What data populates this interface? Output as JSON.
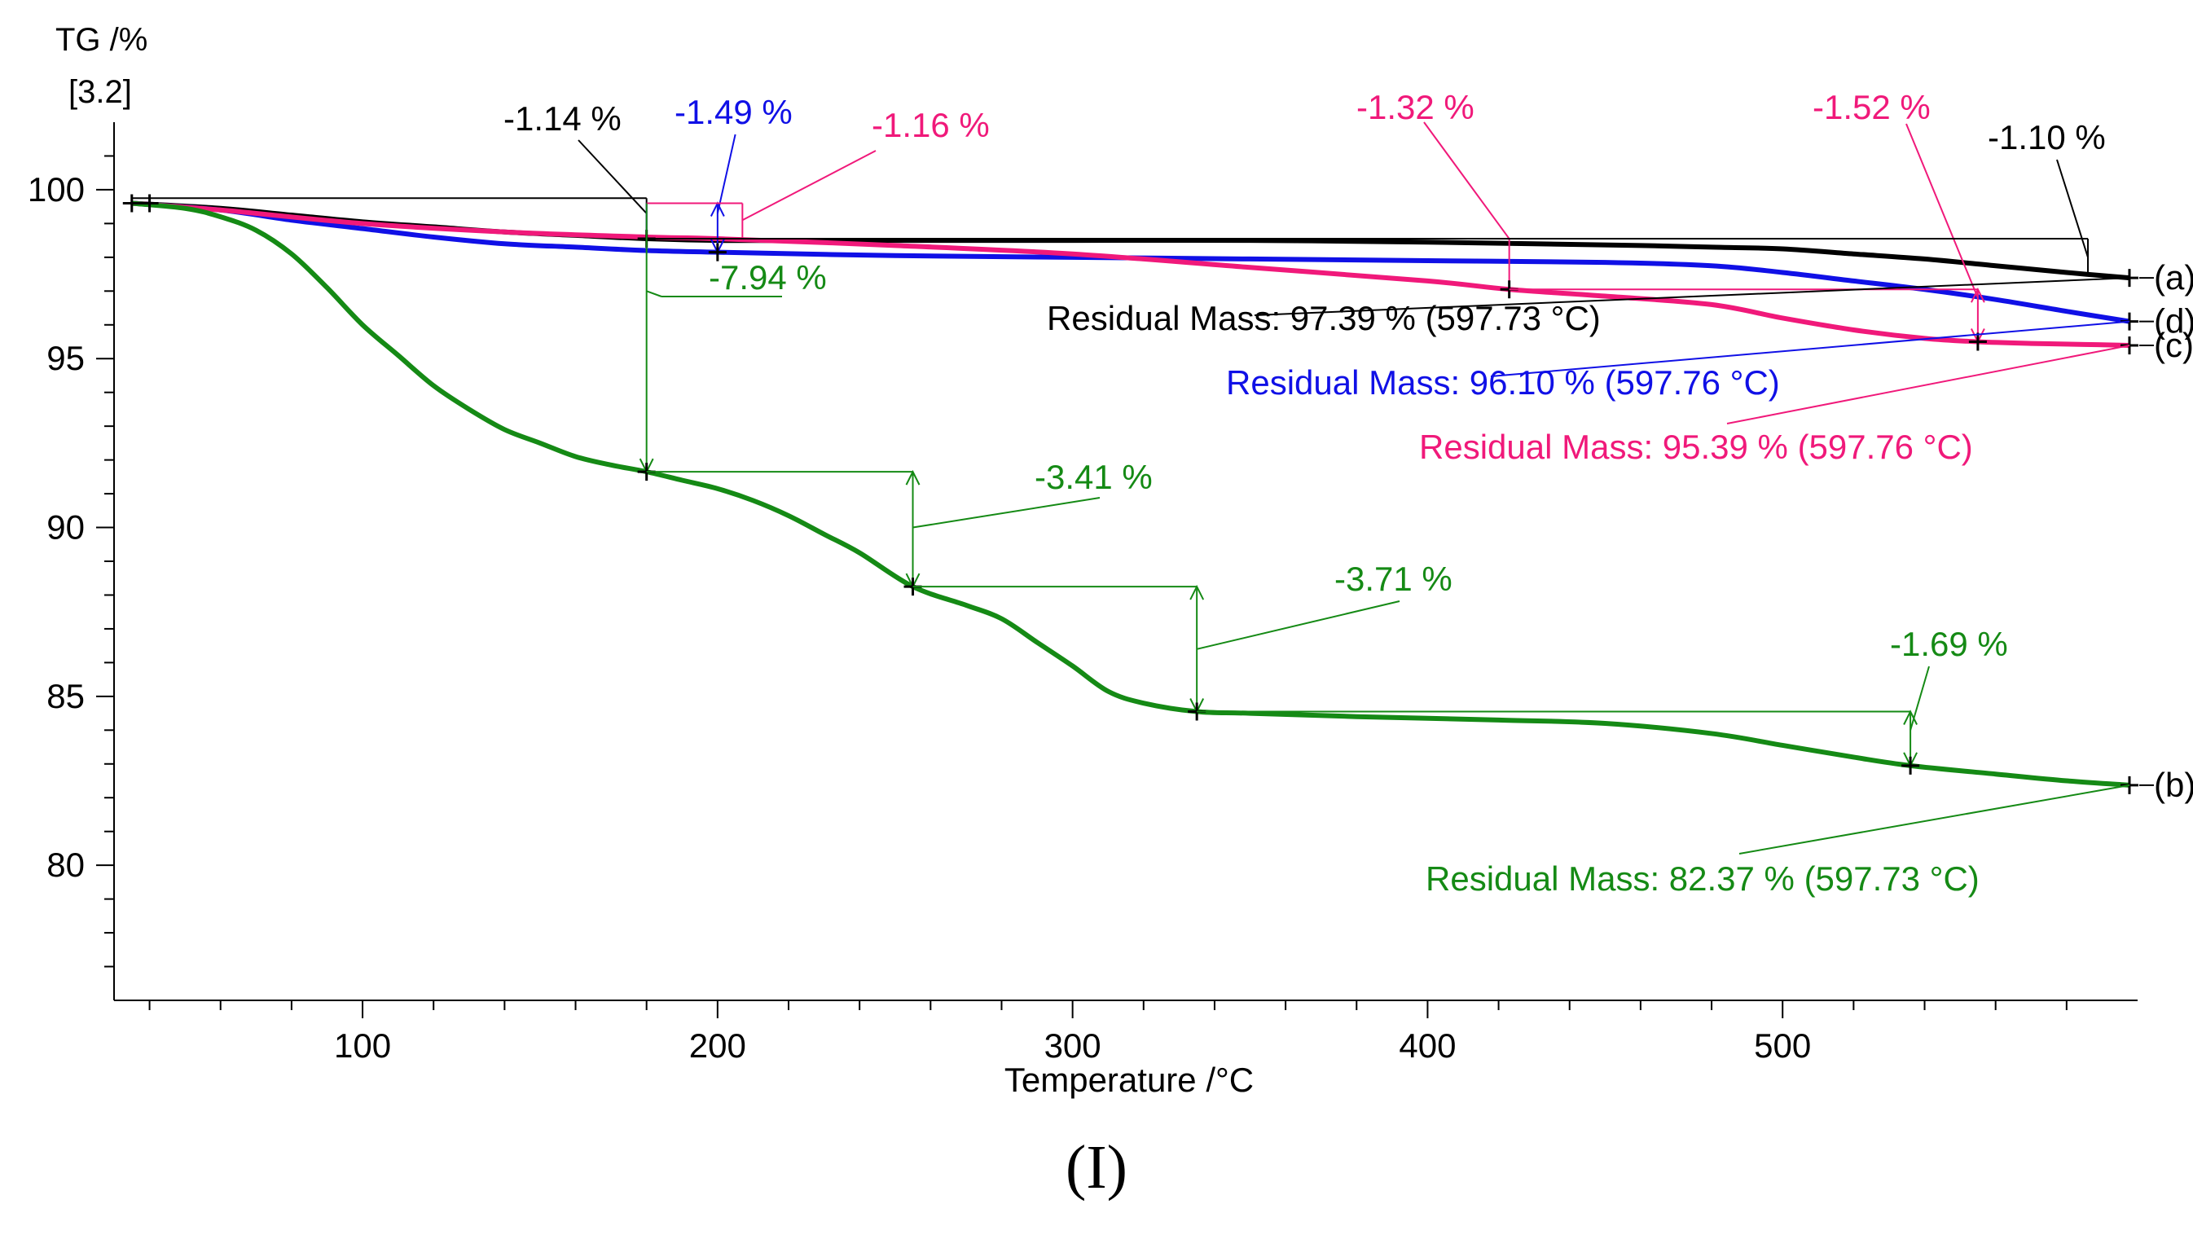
{
  "chart_data": {
    "type": "line",
    "title": "",
    "xlabel": "Temperature /°C",
    "ylabel": "TG /%",
    "ylabel_sub": "[3.2]",
    "xlim": [
      30,
      600
    ],
    "ylim": [
      76,
      102
    ],
    "xticks": [
      100,
      200,
      300,
      400,
      500
    ],
    "yticks": [
      80,
      85,
      90,
      95,
      100
    ],
    "grid": false,
    "series": [
      {
        "name": "(a)",
        "color": "#000000",
        "x": [
          35,
          60,
          80,
          100,
          120,
          140,
          160,
          180,
          200,
          220,
          250,
          300,
          350,
          400,
          430,
          460,
          480,
          500,
          520,
          540,
          560,
          580,
          597.73
        ],
        "y": [
          99.6,
          99.45,
          99.25,
          99.05,
          98.9,
          98.75,
          98.65,
          98.55,
          98.5,
          98.5,
          98.5,
          98.5,
          98.5,
          98.45,
          98.4,
          98.35,
          98.3,
          98.25,
          98.1,
          97.95,
          97.75,
          97.55,
          97.39
        ]
      },
      {
        "name": "(d)",
        "color": "#1010e6",
        "x": [
          35,
          60,
          80,
          100,
          120,
          140,
          160,
          180,
          200,
          250,
          300,
          350,
          400,
          450,
          480,
          500,
          520,
          540,
          560,
          580,
          597.76
        ],
        "y": [
          99.6,
          99.4,
          99.1,
          98.85,
          98.6,
          98.4,
          98.3,
          98.2,
          98.15,
          98.05,
          98.0,
          97.95,
          97.9,
          97.85,
          97.75,
          97.55,
          97.3,
          97.05,
          96.75,
          96.4,
          96.1
        ]
      },
      {
        "name": "(c)",
        "color": "#f0197a",
        "x": [
          35,
          60,
          100,
          140,
          180,
          200,
          250,
          300,
          350,
          400,
          423,
          450,
          480,
          500,
          520,
          540,
          555,
          570,
          585,
          597.76
        ],
        "y": [
          99.6,
          99.4,
          99.0,
          98.75,
          98.6,
          98.55,
          98.35,
          98.1,
          97.7,
          97.3,
          97.05,
          96.85,
          96.6,
          96.2,
          95.85,
          95.6,
          95.5,
          95.45,
          95.42,
          95.39
        ]
      },
      {
        "name": "(b)",
        "color": "#158a15",
        "x": [
          35,
          50,
          60,
          70,
          80,
          90,
          100,
          110,
          120,
          130,
          140,
          150,
          160,
          170,
          180,
          190,
          200,
          210,
          220,
          230,
          240,
          255,
          270,
          280,
          290,
          300,
          310,
          320,
          335,
          350,
          380,
          420,
          450,
          480,
          500,
          520,
          536,
          560,
          580,
          597.73
        ],
        "y": [
          99.6,
          99.45,
          99.2,
          98.8,
          98.1,
          97.1,
          96.0,
          95.1,
          94.2,
          93.5,
          92.9,
          92.5,
          92.1,
          91.85,
          91.65,
          91.4,
          91.15,
          90.8,
          90.35,
          89.8,
          89.25,
          88.25,
          87.7,
          87.3,
          86.6,
          85.9,
          85.15,
          84.8,
          84.55,
          84.5,
          84.4,
          84.3,
          84.2,
          83.9,
          83.55,
          83.2,
          82.95,
          82.7,
          82.5,
          82.37
        ]
      }
    ],
    "curve_labels": [
      {
        "text": "(a)",
        "y": 97.39
      },
      {
        "text": "(d)",
        "y": 96.1
      },
      {
        "text": "(c)",
        "y": 95.39
      },
      {
        "text": "(b)",
        "y": 82.37
      }
    ],
    "annotations": [
      {
        "text": "-1.14 %",
        "color": "#000000"
      },
      {
        "text": "-1.49 %",
        "color": "#1010e6"
      },
      {
        "text": "-1.16 %",
        "color": "#f0197a"
      },
      {
        "text": "-1.32 %",
        "color": "#f0197a"
      },
      {
        "text": "-1.52 %",
        "color": "#f0197a"
      },
      {
        "text": "-1.10 %",
        "color": "#000000"
      },
      {
        "text": "-7.94 %",
        "color": "#158a15"
      },
      {
        "text": "-3.41 %",
        "color": "#158a15"
      },
      {
        "text": "-3.71 %",
        "color": "#158a15"
      },
      {
        "text": "-1.69 %",
        "color": "#158a15"
      },
      {
        "text": "Residual Mass: 97.39 % (597.73 °C)",
        "color": "#000000"
      },
      {
        "text": "Residual Mass: 96.10 % (597.76 °C)",
        "color": "#1010e6"
      },
      {
        "text": "Residual Mass: 95.39 % (597.76 °C)",
        "color": "#f0197a"
      },
      {
        "text": "Residual Mass: 82.37 % (597.73 °C)",
        "color": "#158a15"
      }
    ]
  },
  "panel_label": "(I)"
}
